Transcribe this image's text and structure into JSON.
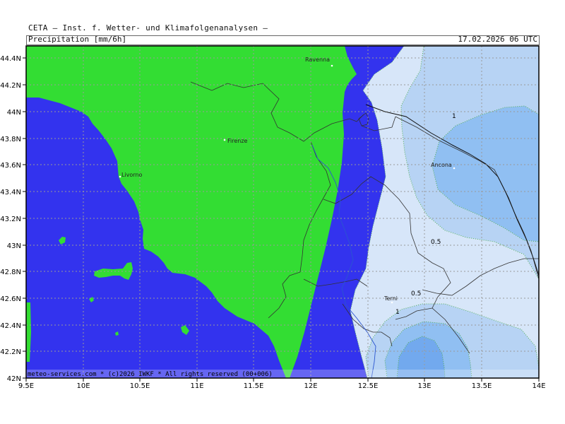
{
  "header": {
    "title": "CETA — Inst. f. Wetter- und Klimafolgenanalysen —",
    "variable": "Precipitation [mm/6h]",
    "datetime": "17.02.2026 06 UTC"
  },
  "footer": "meteo-services.com * (c)2026 IWKF * All rights reserved (00+006)",
  "axes": {
    "lon_labels": [
      "9.5E",
      "10E",
      "10.5E",
      "11E",
      "11.5E",
      "12E",
      "12.5E",
      "13E",
      "13.5E",
      "14E"
    ],
    "lat_labels": [
      "44.4N",
      "44.2N",
      "44N",
      "43.8N",
      "43.6N",
      "43.4N",
      "43.2N",
      "43N",
      "42.8N",
      "42.6N",
      "42.4N",
      "42.2N",
      "42N"
    ]
  },
  "cities": {
    "ravenna": "Ravenna",
    "firenze": "Firenze",
    "livorno": "Livorno",
    "ancona": "Ancona",
    "terni": "Terni"
  },
  "contour_labels": {
    "one_a": "1",
    "half_a": "0.5",
    "half_b": "0.5",
    "one_b": "1"
  },
  "colors": {
    "sea": "#3333ee",
    "land": "#33dd33",
    "precip_low": "#d7e6f9",
    "precip_mid": "#b7d3f4",
    "precip_high": "#90bff2",
    "precip_max": "#72a9ee"
  }
}
